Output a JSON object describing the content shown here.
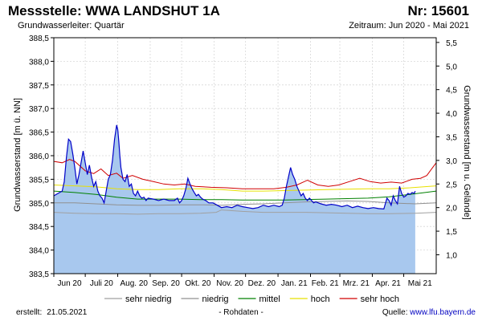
{
  "header": {
    "title": "Messstelle: WWA LANDSHUT 1A",
    "number": "Nr: 15601",
    "subtitle": "Grundwasserleiter: Quartär",
    "period": "Zeitraum: Jun 2020 - Mai 2021"
  },
  "footer": {
    "created_label": "erstellt:",
    "created_date": "21.05.2021",
    "note": "- Rohdaten -",
    "source_label": "Quelle:",
    "source_url": "www.lfu.bayern.de"
  },
  "colors": {
    "fill": "#a8c8ee",
    "line": "#0000c8",
    "sehr_niedrig": "#a0a0a0",
    "niedrig": "#909090",
    "mittel": "#008000",
    "hoch": "#e8e000",
    "sehr_hoch": "#d00000"
  },
  "chart_data": {
    "type": "area",
    "ylabel": "Grundwasserstand [m ü. NN]",
    "y2label": "Grundwasserstand [m u. Gelände]",
    "ylim": [
      383.5,
      388.5
    ],
    "y2lim": [
      5.6,
      0.6
    ],
    "yticks": [
      "388,5",
      "388,0",
      "387,5",
      "387,0",
      "386,5",
      "386,0",
      "385,5",
      "385,0",
      "384,5",
      "384,0",
      "383,5"
    ],
    "y2ticks": [
      "1,0",
      "1,5",
      "2,0",
      "2,5",
      "3,0",
      "3,5",
      "4,0",
      "4,5",
      "5,0",
      "5,5"
    ],
    "xlim_days": [
      0,
      365
    ],
    "xticks": [
      {
        "label": "Jun 20",
        "day": 0
      },
      {
        "label": "Juli 20",
        "day": 30
      },
      {
        "label": "Aug. 20",
        "day": 61
      },
      {
        "label": "Sep. 20",
        "day": 92
      },
      {
        "label": "Okt. 20",
        "day": 122
      },
      {
        "label": "Nov. 20",
        "day": 153
      },
      {
        "label": "Dez. 20",
        "day": 183
      },
      {
        "label": "Jan. 21",
        "day": 214
      },
      {
        "label": "Feb. 21",
        "day": 245
      },
      {
        "label": "Mrz. 21",
        "day": 273
      },
      {
        "label": "Apr. 21",
        "day": 304
      },
      {
        "label": "Mai 21",
        "day": 334
      }
    ],
    "grid": true,
    "legend_position": "bottom",
    "legend": [
      {
        "key": "sehr_niedrig",
        "label": "sehr niedrig"
      },
      {
        "key": "niedrig",
        "label": "niedrig"
      },
      {
        "key": "mittel",
        "label": "mittel"
      },
      {
        "key": "hoch",
        "label": "hoch"
      },
      {
        "key": "sehr_hoch",
        "label": "sehr hoch"
      }
    ],
    "series": {
      "water_level": {
        "x": [
          0,
          4,
          8,
          10,
          12,
          14,
          16,
          18,
          20,
          22,
          24,
          26,
          28,
          30,
          32,
          34,
          36,
          38,
          40,
          42,
          44,
          46,
          48,
          50,
          52,
          54,
          56,
          58,
          60,
          61,
          62,
          63,
          64,
          66,
          68,
          70,
          72,
          74,
          76,
          78,
          80,
          82,
          84,
          86,
          88,
          90,
          95,
          100,
          105,
          110,
          115,
          118,
          120,
          122,
          124,
          126,
          128,
          130,
          132,
          134,
          136,
          138,
          140,
          142,
          145,
          148,
          152,
          156,
          160,
          165,
          170,
          175,
          180,
          185,
          190,
          195,
          200,
          205,
          210,
          215,
          218,
          220,
          222,
          224,
          226,
          228,
          230,
          232,
          234,
          236,
          238,
          240,
          242,
          244,
          246,
          248,
          250,
          255,
          260,
          265,
          270,
          275,
          280,
          285,
          290,
          295,
          300,
          305,
          310,
          315,
          318,
          320,
          322,
          324,
          326,
          328,
          330,
          332,
          334,
          336,
          338,
          340,
          342,
          344,
          345
        ],
        "y": [
          385.15,
          385.2,
          385.25,
          385.45,
          385.95,
          386.35,
          386.3,
          386.05,
          385.75,
          385.4,
          385.6,
          385.85,
          386.1,
          385.85,
          385.6,
          385.8,
          385.55,
          385.35,
          385.45,
          385.25,
          385.15,
          385.1,
          385.0,
          385.25,
          385.5,
          385.6,
          385.9,
          386.35,
          386.65,
          386.55,
          386.3,
          386.0,
          385.75,
          385.5,
          385.45,
          385.6,
          385.35,
          385.4,
          385.2,
          385.15,
          385.25,
          385.15,
          385.1,
          385.12,
          385.05,
          385.1,
          385.08,
          385.05,
          385.08,
          385.05,
          385.05,
          385.1,
          385.0,
          385.05,
          385.15,
          385.3,
          385.52,
          385.4,
          385.3,
          385.22,
          385.15,
          385.18,
          385.12,
          385.08,
          385.05,
          385.0,
          385.0,
          384.95,
          384.9,
          384.92,
          384.9,
          384.95,
          384.92,
          384.9,
          384.88,
          384.9,
          384.95,
          384.92,
          384.95,
          384.92,
          384.95,
          385.1,
          385.35,
          385.55,
          385.75,
          385.6,
          385.5,
          385.35,
          385.25,
          385.15,
          385.2,
          385.1,
          385.05,
          385.1,
          385.05,
          385.0,
          385.02,
          384.98,
          384.95,
          384.97,
          384.95,
          384.92,
          384.95,
          384.9,
          384.93,
          384.9,
          384.88,
          384.9,
          384.88,
          384.87,
          385.1,
          385.05,
          384.95,
          385.15,
          385.05,
          384.98,
          385.35,
          385.2,
          385.12,
          385.15,
          385.2,
          385.18,
          385.22,
          385.2,
          385.25
        ]
      },
      "sehr_niedrig": {
        "x": [
          0,
          20,
          40,
          60,
          80,
          100,
          120,
          140,
          155,
          160,
          180,
          200,
          220,
          240,
          260,
          280,
          300,
          320,
          345,
          365
        ],
        "y": [
          384.8,
          384.78,
          384.77,
          384.77,
          384.76,
          384.77,
          384.77,
          384.78,
          384.8,
          384.85,
          384.82,
          384.8,
          384.8,
          384.8,
          384.79,
          384.78,
          384.77,
          384.77,
          384.78,
          384.8
        ]
      },
      "niedrig": {
        "x": [
          0,
          20,
          40,
          60,
          80,
          100,
          120,
          140,
          160,
          180,
          200,
          220,
          240,
          260,
          280,
          300,
          320,
          345,
          365
        ],
        "y": [
          385.0,
          385.0,
          384.98,
          384.96,
          384.95,
          384.95,
          384.96,
          384.96,
          384.95,
          384.97,
          384.98,
          385.0,
          385.02,
          385.03,
          385.04,
          385.03,
          385.0,
          384.98,
          385.0
        ]
      },
      "mittel": {
        "x": [
          0,
          20,
          40,
          60,
          80,
          100,
          120,
          140,
          160,
          180,
          200,
          220,
          240,
          260,
          280,
          300,
          320,
          340,
          365
        ],
        "y": [
          385.25,
          385.22,
          385.18,
          385.12,
          385.08,
          385.08,
          385.08,
          385.07,
          385.07,
          385.06,
          385.06,
          385.06,
          385.07,
          385.08,
          385.09,
          385.1,
          385.13,
          385.18,
          385.25
        ]
      },
      "hoch": {
        "x": [
          0,
          20,
          40,
          60,
          80,
          100,
          120,
          140,
          160,
          180,
          200,
          220,
          240,
          260,
          280,
          300,
          320,
          340,
          365
        ],
        "y": [
          385.38,
          385.36,
          385.34,
          385.3,
          385.28,
          385.28,
          385.3,
          385.3,
          385.28,
          385.25,
          385.25,
          385.26,
          385.27,
          385.28,
          385.29,
          385.3,
          385.3,
          385.32,
          385.36
        ]
      },
      "sehr_hoch": {
        "x": [
          0,
          8,
          15,
          20,
          30,
          38,
          45,
          52,
          60,
          66,
          75,
          85,
          95,
          105,
          115,
          125,
          135,
          150,
          165,
          180,
          195,
          210,
          222,
          232,
          242,
          252,
          262,
          272,
          282,
          292,
          302,
          312,
          322,
          332,
          342,
          350,
          356,
          360,
          365
        ],
        "y": [
          385.88,
          385.85,
          385.92,
          385.88,
          385.68,
          385.62,
          385.72,
          385.58,
          385.63,
          385.52,
          385.58,
          385.5,
          385.45,
          385.4,
          385.38,
          385.4,
          385.35,
          385.33,
          385.32,
          385.3,
          385.3,
          385.3,
          385.33,
          385.38,
          385.48,
          385.38,
          385.35,
          385.38,
          385.45,
          385.52,
          385.45,
          385.42,
          385.44,
          385.42,
          385.5,
          385.52,
          385.58,
          385.7,
          385.85
        ]
      }
    }
  }
}
